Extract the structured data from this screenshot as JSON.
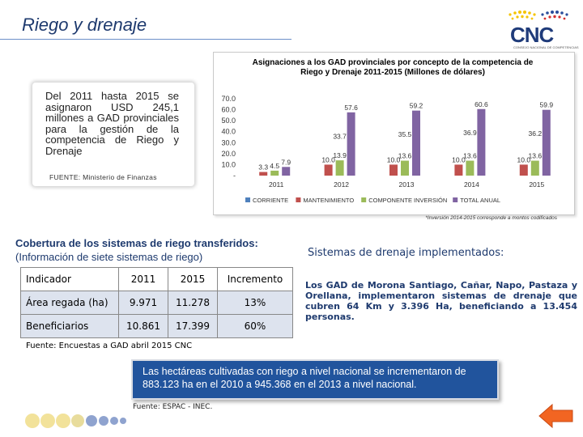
{
  "header": {
    "title": "Riego y drenaje",
    "logo_text": "CNC",
    "logo_subtitle": "CONSEJO NACIONAL DE COMPETENCIAS"
  },
  "info_box": {
    "text": "Del 2011 hasta 2015 se asignaron USD 245,1 millones a GAD provinciales para la gestión de la competencia de Riego y Drenaje",
    "source": "FUENTE: Ministerio de Finanzas"
  },
  "chart_data": {
    "type": "bar",
    "title": "Asignaciones a los GAD provinciales por concepto de la competencia de Riego y Drenaje 2011-2015 (Millones de dólares)",
    "categories": [
      "2011",
      "2012",
      "2013",
      "2014",
      "2015"
    ],
    "series": [
      {
        "name": "CORRIENTE",
        "color": "#4f81bd",
        "values": [
          null,
          null,
          null,
          null,
          null
        ],
        "labels": [
          "",
          "",
          "",
          "",
          ""
        ]
      },
      {
        "name": "MANTENIMIENTO",
        "color": "#c0504d",
        "values": [
          3.3,
          10.0,
          10.0,
          10.0,
          10.0
        ],
        "labels": [
          "3.3",
          "10.0",
          "10.0",
          "10.0",
          "10.0"
        ]
      },
      {
        "name": "COMPONENTE INVERSIÓN",
        "color": "#9bbb59",
        "values": [
          4.5,
          13.9,
          13.6,
          13.6,
          13.6
        ],
        "labels": [
          "4.5",
          "13.9",
          "13.6",
          "13.6",
          "13.6"
        ]
      },
      {
        "name": "TOTAL ANUAL",
        "color": "#8064a2",
        "values": [
          7.9,
          57.6,
          59.2,
          60.6,
          59.9
        ],
        "labels": [
          "7.9",
          "57.6",
          "59.2",
          "60.6",
          "59.9"
        ]
      }
    ],
    "extra_labels": [
      {
        "category": "2012",
        "text": "33.7",
        "value": 33.7
      },
      {
        "category": "2013",
        "text": "35.5",
        "value": 35.5
      },
      {
        "category": "2014",
        "text": "36.9",
        "value": 36.9
      },
      {
        "category": "2015",
        "text": "36.2",
        "value": 36.2
      }
    ],
    "yticks": [
      "70.0",
      "60.0",
      "50.0",
      "40.0",
      "30.0",
      "20.0",
      "10.0",
      "-"
    ],
    "ylim": [
      0,
      70
    ],
    "legend_position": "bottom",
    "footnote": "*Inversión 2014-2015 corresponde a montos codificados"
  },
  "coverage": {
    "title": "Cobertura de los sistemas de riego transferidos:",
    "subtitle": "(Información de siete sistemas de riego)",
    "headers": [
      "Indicador",
      "2011",
      "2015",
      "Incremento"
    ],
    "rows": [
      [
        "Área regada (ha)",
        "9.971",
        "11.278",
        "13%"
      ],
      [
        "Beneficiarios",
        "10.861",
        "17.399",
        "60%"
      ]
    ],
    "source": "Fuente: Encuestas a GAD abril 2015 CNC"
  },
  "drainage": {
    "title": "Sistemas de drenaje implementados:",
    "text": "Los GAD de Morona Santiago, Cañar, Napo, Pastaza y Orellana, implementaron sistemas de drenaje que cubren 64 Km y 3.396 Ha, beneficiando a 13.454 personas."
  },
  "banner": {
    "text": "Las hectáreas cultivadas con riego a nivel nacional se incrementaron de 883.123 ha en el 2010 a 945.368 en el 2013 a nivel nacional.",
    "source": "Fuente: ESPAC - INEC."
  },
  "colors": {
    "title_blue": "#1e3a6e",
    "band_blue": "#21549d",
    "dot_yellow": "#f2e29a",
    "dot_blue": "#8fa3cf",
    "arrow_orange": "#f26522"
  }
}
